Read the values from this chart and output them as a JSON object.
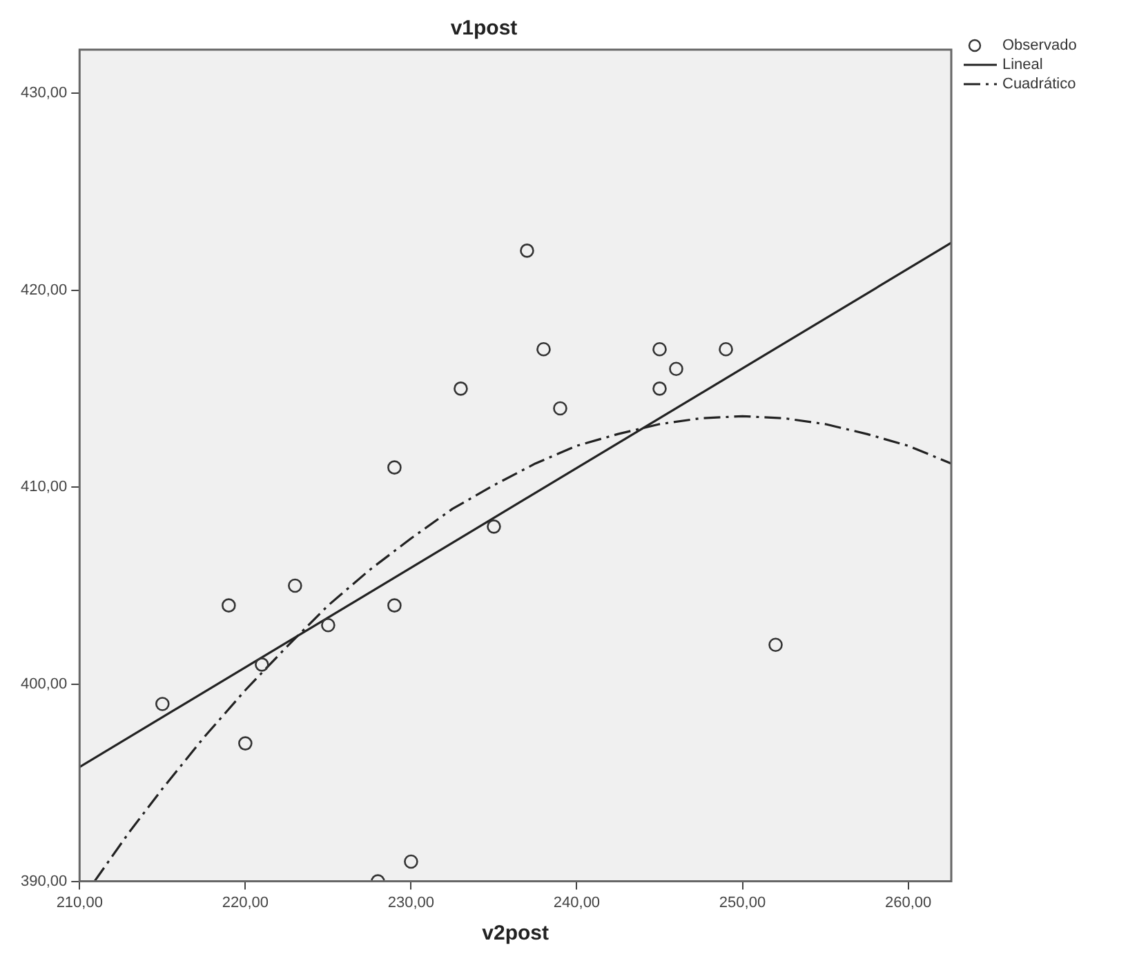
{
  "chart_data": {
    "type": "scatter",
    "title": "v1post",
    "xlabel": "v2post",
    "xlim": [
      210,
      262.6
    ],
    "ylim": [
      390,
      432.2
    ],
    "xticks": [
      {
        "value": 210,
        "label": "210,00"
      },
      {
        "value": 220,
        "label": "220,00"
      },
      {
        "value": 230,
        "label": "230,00"
      },
      {
        "value": 240,
        "label": "240,00"
      },
      {
        "value": 250,
        "label": "250,00"
      },
      {
        "value": 260,
        "label": "260,00"
      }
    ],
    "yticks": [
      {
        "value": 390,
        "label": "390,00"
      },
      {
        "value": 400,
        "label": "400,00"
      },
      {
        "value": 410,
        "label": "410,00"
      },
      {
        "value": 420,
        "label": "420,00"
      },
      {
        "value": 430,
        "label": "430,00"
      }
    ],
    "grid": false,
    "legend": "right",
    "series": [
      {
        "name": "Observado",
        "type": "scatter",
        "marker": "circle",
        "color": "#333333",
        "x": [
          215,
          219,
          220,
          221,
          223,
          225,
          229,
          229,
          228,
          230,
          233,
          235,
          237,
          238,
          239,
          245,
          245,
          246,
          249,
          252
        ],
        "values": [
          399,
          404,
          397,
          401,
          405,
          403,
          404,
          411,
          390,
          391,
          415,
          408,
          422,
          417,
          414,
          417,
          415,
          416,
          417,
          402
        ]
      },
      {
        "name": "Lineal",
        "type": "line",
        "line_style": "solid",
        "marker": "none",
        "color": "#222222",
        "x": [
          210,
          262.6
        ],
        "values": [
          395.8,
          422.4
        ]
      },
      {
        "name": "Cuadrático",
        "type": "line",
        "line_style": "dashed",
        "marker": "none",
        "color": "#222222",
        "x": [
          210.9,
          213,
          215,
          217.5,
          220,
          222.5,
          225,
          227.5,
          230,
          232.5,
          235,
          237.5,
          240,
          242.5,
          245,
          247.5,
          250,
          252.5,
          255,
          257.5,
          260,
          262.6
        ],
        "values": [
          390.0,
          392.5,
          394.7,
          397.3,
          399.7,
          401.9,
          404.0,
          405.8,
          407.4,
          408.9,
          410.1,
          411.2,
          412.1,
          412.7,
          413.2,
          413.5,
          413.6,
          413.5,
          413.2,
          412.7,
          412.1,
          411.2
        ]
      }
    ]
  }
}
